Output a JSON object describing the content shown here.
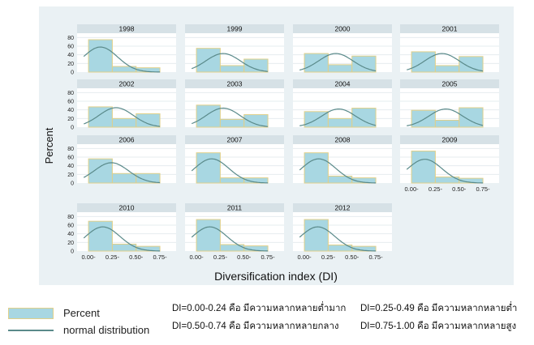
{
  "chart_data": {
    "type": "histogram-grid",
    "ylabel": "Percent",
    "xlabel": "Diversification index (DI)",
    "yticks": [
      "0",
      "20",
      "40",
      "60",
      "80"
    ],
    "ylim": [
      0,
      90
    ],
    "xticks": [
      "0.00-",
      "0.25-",
      "0.50-",
      "0.75-"
    ],
    "bins": [
      "0.00-0.24",
      "0.25-0.49",
      "0.50-0.74",
      "0.75-1.00"
    ],
    "series_names": [
      "Percent",
      "normal distribution"
    ],
    "panels": [
      {
        "title": "1998",
        "values": [
          75,
          13,
          10,
          0
        ],
        "curve_mean": 0.125,
        "curve_peak": 58
      },
      {
        "title": "1999",
        "values": [
          55,
          15,
          30,
          0
        ],
        "curve_mean": 0.28,
        "curve_peak": 43
      },
      {
        "title": "2000",
        "values": [
          43,
          17,
          37,
          0
        ],
        "curve_mean": 0.33,
        "curve_peak": 43
      },
      {
        "title": "2001",
        "values": [
          47,
          15,
          36,
          0
        ],
        "curve_mean": 0.32,
        "curve_peak": 43
      },
      {
        "title": "2002",
        "values": [
          47,
          20,
          31,
          0
        ],
        "curve_mean": 0.29,
        "curve_peak": 45
      },
      {
        "title": "2003",
        "values": [
          51,
          18,
          29,
          0
        ],
        "curve_mean": 0.28,
        "curve_peak": 44
      },
      {
        "title": "2004",
        "values": [
          36,
          20,
          44,
          0
        ],
        "curve_mean": 0.36,
        "curve_peak": 42
      },
      {
        "title": "2005",
        "values": [
          39,
          16,
          45,
          0
        ],
        "curve_mean": 0.36,
        "curve_peak": 42
      },
      {
        "title": "2006",
        "values": [
          56,
          22,
          22,
          0
        ],
        "curve_mean": 0.24,
        "curve_peak": 47
      },
      {
        "title": "2007",
        "values": [
          70,
          12,
          12,
          0
        ],
        "curve_mean": 0.16,
        "curve_peak": 56
      },
      {
        "title": "2008",
        "values": [
          70,
          16,
          12,
          0
        ],
        "curve_mean": 0.15,
        "curve_peak": 56
      },
      {
        "title": "2009",
        "values": [
          74,
          14,
          11,
          0
        ],
        "curve_mean": 0.14,
        "curve_peak": 55
      },
      {
        "title": "2010",
        "values": [
          69,
          16,
          11,
          0
        ],
        "curve_mean": 0.15,
        "curve_peak": 56
      },
      {
        "title": "2011",
        "values": [
          73,
          15,
          12,
          0
        ],
        "curve_mean": 0.14,
        "curve_peak": 56
      },
      {
        "title": "2012",
        "values": [
          73,
          14,
          11,
          0
        ],
        "curve_mean": 0.14,
        "curve_peak": 56
      }
    ],
    "grid": true,
    "legend_position": "bottom-left"
  },
  "legend": {
    "bar_label": "Percent",
    "line_label": "normal distribution"
  },
  "notes": {
    "n1": "DI=0.00-0.24 คือ มีความหลากหลายต่ำมาก",
    "n2": "DI=0.25-0.49 คือ มีความหลากหลายต่ำ",
    "n3": "DI=0.50-0.74 คือ มีความหลากหลายกลาง",
    "n4": "DI=0.75-1.00 คือ มีความหลากหลายสูง"
  },
  "colors": {
    "background_panel": "#eaf1f4",
    "plot_bg": "#ffffff",
    "strip": "#d6e1e6",
    "bar_fill": "#a8d7e2",
    "bar_edge": "#e0d08a",
    "curve": "#5a8a8a",
    "grid": "#e6ecef"
  }
}
